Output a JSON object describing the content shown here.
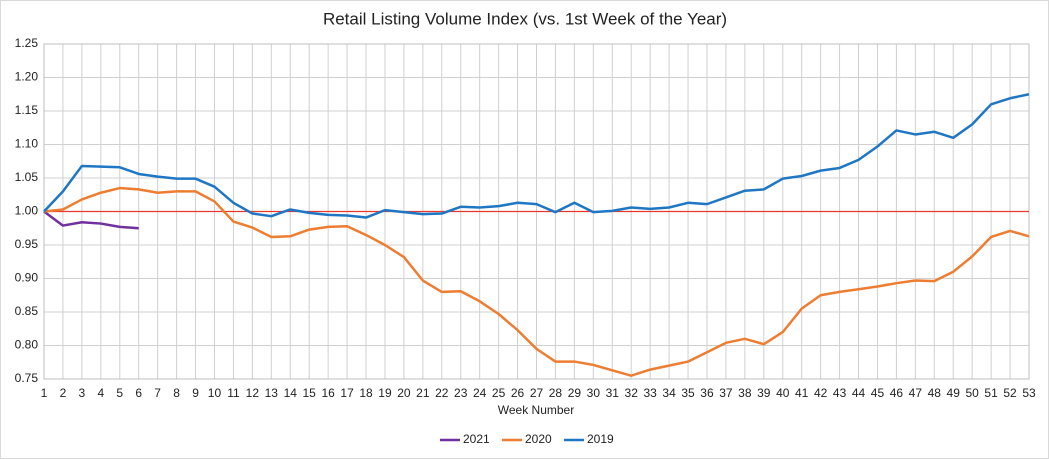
{
  "chart_data": {
    "type": "line",
    "title": "Retail Listing Volume Index (vs. 1st Week of the Year)",
    "x_label": "Week Number",
    "x": [
      1,
      2,
      3,
      4,
      5,
      6,
      7,
      8,
      9,
      10,
      11,
      12,
      13,
      14,
      15,
      16,
      17,
      18,
      19,
      20,
      21,
      22,
      23,
      24,
      25,
      26,
      27,
      28,
      29,
      30,
      31,
      32,
      33,
      34,
      35,
      36,
      37,
      38,
      39,
      40,
      41,
      42,
      43,
      44,
      45,
      46,
      47,
      48,
      49,
      50,
      51,
      52,
      53
    ],
    "xlim": [
      1,
      53
    ],
    "xticks": [
      1,
      2,
      3,
      4,
      5,
      6,
      7,
      8,
      9,
      10,
      11,
      12,
      13,
      14,
      15,
      16,
      17,
      18,
      19,
      20,
      21,
      22,
      23,
      24,
      25,
      26,
      27,
      28,
      29,
      30,
      31,
      32,
      33,
      34,
      35,
      36,
      37,
      38,
      39,
      40,
      41,
      42,
      43,
      44,
      45,
      46,
      47,
      48,
      49,
      50,
      51,
      52,
      53
    ],
    "ylim": [
      0.75,
      1.25
    ],
    "yticks": [
      0.75,
      {
        "value": 0.8,
        "label": "0.80"
      },
      0.85,
      {
        "value": 0.9,
        "label": "0.90"
      },
      0.95,
      {
        "value": 1.0,
        "label": "1.00"
      },
      1.05,
      {
        "value": 1.1,
        "label": "1.10"
      },
      1.15,
      {
        "value": 1.2,
        "label": "1.20"
      },
      1.25
    ],
    "grid": true,
    "reference_line": {
      "value": 1.0,
      "color": "#e8372c"
    },
    "legend": "bottom",
    "series": [
      {
        "name": "2021",
        "color": "#7030a0",
        "values": [
          1.0,
          0.979,
          0.984,
          0.982,
          0.977,
          0.975,
          null,
          null,
          null,
          null,
          null,
          null,
          null,
          null,
          null,
          null,
          null,
          null,
          null,
          null,
          null,
          null,
          null,
          null,
          null,
          null,
          null,
          null,
          null,
          null,
          null,
          null,
          null,
          null,
          null,
          null,
          null,
          null,
          null,
          null,
          null,
          null,
          null,
          null,
          null,
          null,
          null,
          null,
          null,
          null,
          null,
          null,
          null
        ]
      },
      {
        "name": "2020",
        "color": "#ed7d31",
        "values": [
          1.0,
          1.003,
          1.018,
          1.028,
          1.035,
          1.033,
          1.028,
          1.03,
          1.03,
          1.015,
          0.985,
          0.976,
          0.962,
          0.963,
          0.973,
          0.977,
          0.978,
          0.965,
          0.95,
          0.932,
          0.897,
          0.88,
          0.881,
          0.866,
          0.847,
          0.823,
          0.795,
          0.776,
          0.776,
          0.771,
          0.763,
          0.755,
          0.764,
          0.77,
          0.776,
          0.79,
          0.804,
          0.81,
          0.802,
          0.82,
          0.855,
          0.875,
          0.88,
          0.884,
          0.888,
          0.893,
          0.897,
          0.896,
          0.91,
          0.933,
          0.962,
          0.971,
          0.963
        ]
      },
      {
        "name": "2019",
        "color": "#1f77c4",
        "values": [
          1.0,
          1.03,
          1.068,
          1.067,
          1.066,
          1.056,
          1.052,
          1.049,
          1.049,
          1.037,
          1.013,
          0.997,
          0.993,
          1.003,
          0.998,
          0.995,
          0.994,
          0.991,
          1.002,
          0.999,
          0.996,
          0.997,
          1.007,
          1.006,
          1.008,
          1.013,
          1.011,
          0.999,
          1.013,
          0.999,
          1.001,
          1.006,
          1.004,
          1.006,
          1.013,
          1.011,
          1.021,
          1.031,
          1.033,
          1.049,
          1.053,
          1.061,
          1.065,
          1.077,
          1.097,
          1.121,
          1.115,
          1.119,
          1.11,
          1.13,
          1.16,
          1.169,
          1.175
        ]
      }
    ]
  }
}
